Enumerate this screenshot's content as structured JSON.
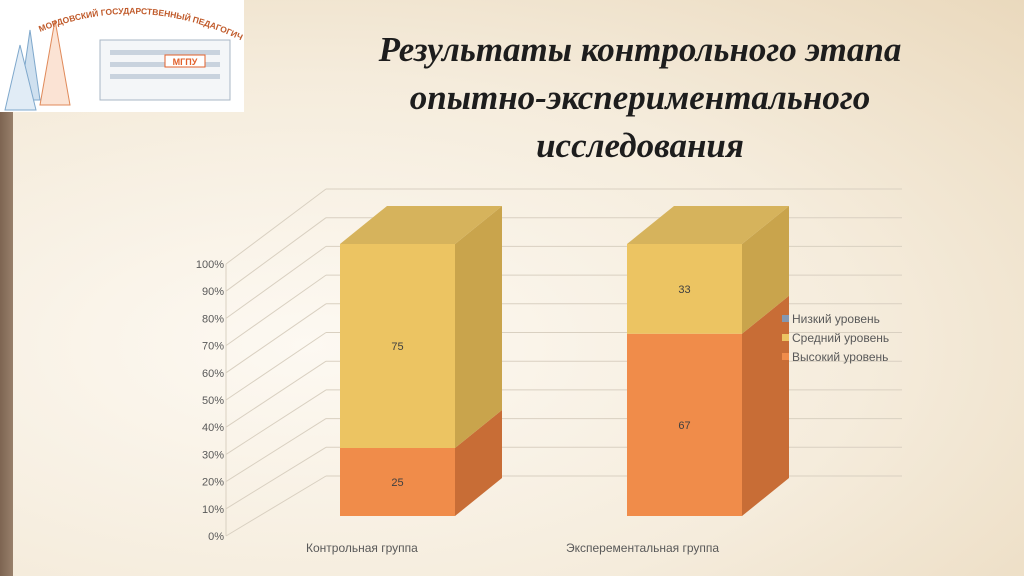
{
  "slide": {
    "title_lines": [
      "Результаты контрольного этапа",
      "опытно-экспериментального",
      "исследования"
    ]
  },
  "logo": {
    "text": "МОРДОВСКИЙ ГОСУДАРСТВЕННЫЙ ПЕДАГОГИЧЕСКИЙ УНИВЕРСИТЕТ",
    "badge": "МГПУ"
  },
  "colors": {
    "low": "#8497b0",
    "medium": "#ecc462",
    "high": "#f08c4a"
  },
  "chart_data": {
    "type": "bar",
    "stacked": true,
    "three_d": true,
    "categories": [
      "Контрольная группа",
      "Эксперементальная группа"
    ],
    "series": [
      {
        "name": "Низкий уровень",
        "values": [
          0,
          0
        ]
      },
      {
        "name": "Средний уровень",
        "values": [
          75,
          33
        ]
      },
      {
        "name": "Высокий уровень",
        "values": [
          25,
          67
        ]
      }
    ],
    "y_ticks": [
      "0%",
      "10%",
      "20%",
      "30%",
      "40%",
      "50%",
      "60%",
      "70%",
      "80%",
      "90%",
      "100%"
    ],
    "ylim": [
      0,
      100
    ],
    "grid": true,
    "legend_position": "right"
  }
}
